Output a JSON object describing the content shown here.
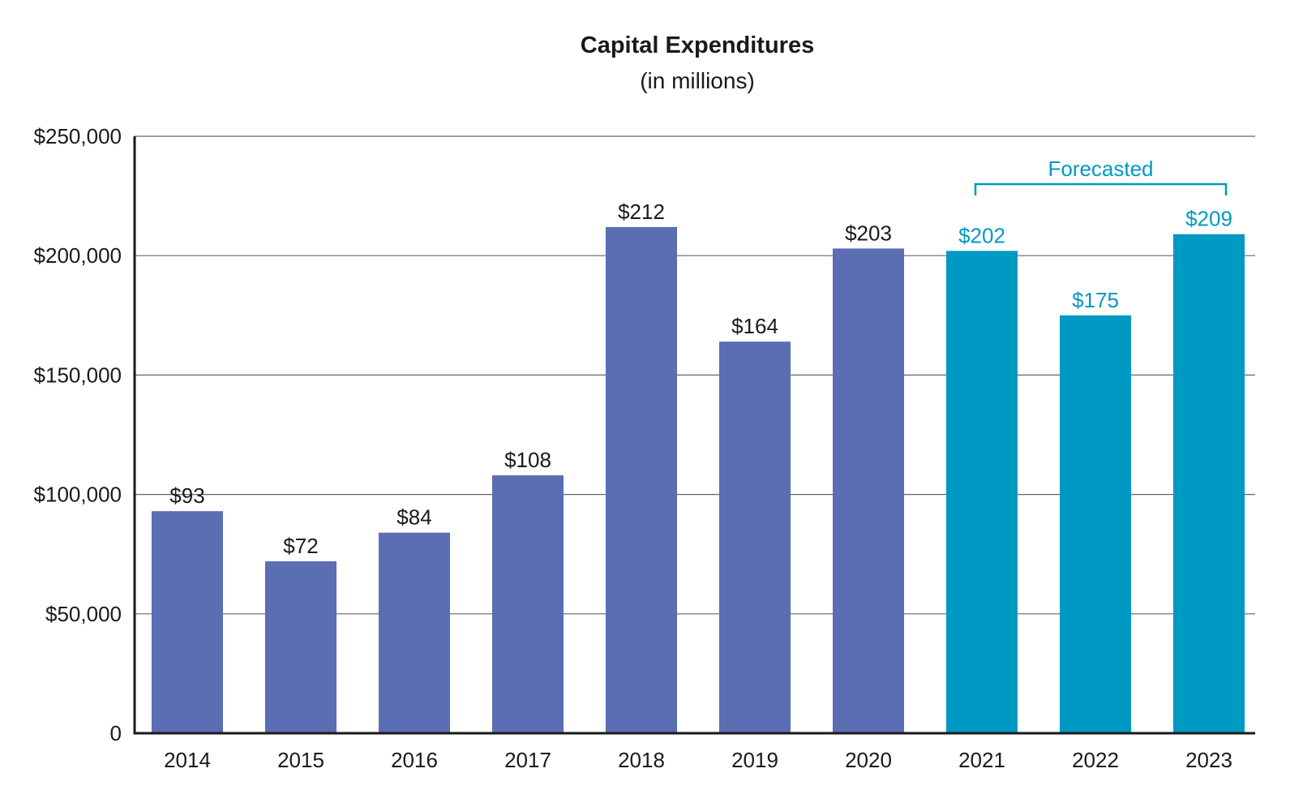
{
  "chart_data": {
    "type": "bar",
    "title": "Capital Expenditures",
    "subtitle": "(in millions)",
    "xlabel": "",
    "ylabel": "",
    "ylim": [
      0,
      250000
    ],
    "y_ticks": [
      0,
      50000,
      100000,
      150000,
      200000,
      250000
    ],
    "y_tick_labels": [
      "0",
      "$50,000",
      "$100,000",
      "$150,000",
      "$200,000",
      "$250,000"
    ],
    "categories": [
      "2014",
      "2015",
      "2016",
      "2017",
      "2018",
      "2019",
      "2020",
      "2021",
      "2022",
      "2023"
    ],
    "values": [
      93000,
      72000,
      84000,
      108000,
      212000,
      164000,
      203000,
      202000,
      175000,
      209000
    ],
    "data_labels": [
      "$93",
      "$72",
      "$84",
      "$108",
      "$212",
      "$164",
      "$203",
      "$202",
      "$175",
      "$209"
    ],
    "forecasted": [
      false,
      false,
      false,
      false,
      false,
      false,
      false,
      true,
      true,
      true
    ],
    "annotation": "Forecasted",
    "grid": true,
    "colors": {
      "actual": "#5b6db3",
      "forecast": "#0099c4",
      "text": "#1a1a1a",
      "grid": "#666666"
    }
  }
}
